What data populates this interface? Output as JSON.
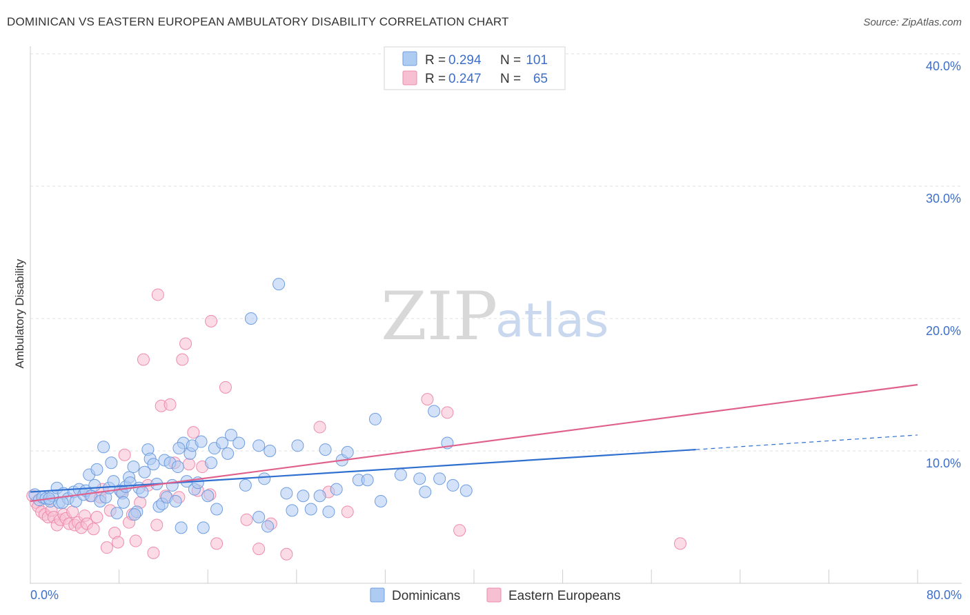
{
  "header": {
    "title": "DOMINICAN VS EASTERN EUROPEAN AMBULATORY DISABILITY CORRELATION CHART",
    "source": "Source: ZipAtlas.com"
  },
  "watermark": {
    "zip": "ZIP",
    "atlas": "atlas"
  },
  "legend": {
    "rows": [
      {
        "r_label": "R =",
        "r_value": "0.294",
        "n_label": "N =",
        "n_value": "101"
      },
      {
        "r_label": "R =",
        "r_value": "0.247",
        "n_label": "N =",
        "n_value": "65"
      }
    ]
  },
  "bottom_legend": {
    "items": [
      "Dominicans",
      "Eastern Europeans"
    ]
  },
  "colors": {
    "blue_fill": "#aecbf2",
    "blue_stroke": "#6e9de0",
    "blue_line": "#2e6fd0",
    "pink_fill": "#f7bfd2",
    "pink_stroke": "#ee8bac",
    "pink_line": "#e0608c",
    "tick_text": "#3d6ec9",
    "grid": "#e0e0e0"
  },
  "chart_data": {
    "type": "scatter",
    "title": "DOMINICAN VS EASTERN EUROPEAN AMBULATORY DISABILITY CORRELATION CHART",
    "xlabel": "",
    "ylabel": "Ambulatory Disability",
    "xlim": [
      0,
      80
    ],
    "ylim": [
      0,
      42
    ],
    "x_tick_labels": [
      "0.0%",
      "80.0%"
    ],
    "y_ticks": [
      10,
      20,
      30,
      40
    ],
    "y_tick_labels": [
      "10.0%",
      "20.0%",
      "30.0%",
      "40.0%"
    ],
    "grid": true,
    "legend_position": "top-center",
    "series": [
      {
        "name": "Dominicans",
        "r": 0.294,
        "n": 101,
        "trend": {
          "x": [
            0,
            60
          ],
          "y": [
            6.9,
            10.1
          ],
          "dashed_to": [
            80,
            11.2
          ]
        },
        "points": [
          [
            0.4,
            6.7
          ],
          [
            0.8,
            6.3
          ],
          [
            1.1,
            6.5
          ],
          [
            1.4,
            6.4
          ],
          [
            1.8,
            6.2
          ],
          [
            2.0,
            6.6
          ],
          [
            2.4,
            7.2
          ],
          [
            2.6,
            6.1
          ],
          [
            3.0,
            6.8
          ],
          [
            3.4,
            6.4
          ],
          [
            3.9,
            6.9
          ],
          [
            4.1,
            6.2
          ],
          [
            4.4,
            7.1
          ],
          [
            4.8,
            6.7
          ],
          [
            5.0,
            7.0
          ],
          [
            5.3,
            8.2
          ],
          [
            5.5,
            6.6
          ],
          [
            5.8,
            7.4
          ],
          [
            6.0,
            8.6
          ],
          [
            6.3,
            6.2
          ],
          [
            6.6,
            10.3
          ],
          [
            6.8,
            6.5
          ],
          [
            7.1,
            7.2
          ],
          [
            7.3,
            9.1
          ],
          [
            7.5,
            7.7
          ],
          [
            7.8,
            5.3
          ],
          [
            8.1,
            7.0
          ],
          [
            8.3,
            6.8
          ],
          [
            8.6,
            7.3
          ],
          [
            8.9,
            8.0
          ],
          [
            9.0,
            7.6
          ],
          [
            9.3,
            8.8
          ],
          [
            9.6,
            5.4
          ],
          [
            9.8,
            7.2
          ],
          [
            10.1,
            6.9
          ],
          [
            10.3,
            8.4
          ],
          [
            10.6,
            10.1
          ],
          [
            10.8,
            9.4
          ],
          [
            11.1,
            9.0
          ],
          [
            11.4,
            7.5
          ],
          [
            11.6,
            5.8
          ],
          [
            11.9,
            6.0
          ],
          [
            12.1,
            9.3
          ],
          [
            12.3,
            6.5
          ],
          [
            12.6,
            9.1
          ],
          [
            12.8,
            7.4
          ],
          [
            13.1,
            6.2
          ],
          [
            13.3,
            8.8
          ],
          [
            13.6,
            4.2
          ],
          [
            13.8,
            10.6
          ],
          [
            14.1,
            7.7
          ],
          [
            14.4,
            9.8
          ],
          [
            14.6,
            10.4
          ],
          [
            14.8,
            7.1
          ],
          [
            15.1,
            7.6
          ],
          [
            15.4,
            10.7
          ],
          [
            15.6,
            4.2
          ],
          [
            16.0,
            6.6
          ],
          [
            16.3,
            9.1
          ],
          [
            16.6,
            10.2
          ],
          [
            17.3,
            10.6
          ],
          [
            17.8,
            9.8
          ],
          [
            18.1,
            11.2
          ],
          [
            18.8,
            10.6
          ],
          [
            19.4,
            7.4
          ],
          [
            19.9,
            20.0
          ],
          [
            20.6,
            10.4
          ],
          [
            21.1,
            7.9
          ],
          [
            21.6,
            10.0
          ],
          [
            22.4,
            22.6
          ],
          [
            23.1,
            6.8
          ],
          [
            23.6,
            5.5
          ],
          [
            24.1,
            10.4
          ],
          [
            24.6,
            6.6
          ],
          [
            25.3,
            5.6
          ],
          [
            26.1,
            6.6
          ],
          [
            26.6,
            10.1
          ],
          [
            26.9,
            5.4
          ],
          [
            27.6,
            7.1
          ],
          [
            28.1,
            9.3
          ],
          [
            28.6,
            9.9
          ],
          [
            29.6,
            7.8
          ],
          [
            30.4,
            7.8
          ],
          [
            31.1,
            12.4
          ],
          [
            31.6,
            6.2
          ],
          [
            33.4,
            8.2
          ],
          [
            35.1,
            7.9
          ],
          [
            35.6,
            6.9
          ],
          [
            36.4,
            13.0
          ],
          [
            36.9,
            7.9
          ],
          [
            37.6,
            10.6
          ],
          [
            38.1,
            7.4
          ],
          [
            39.3,
            7.0
          ],
          [
            20.6,
            5.0
          ],
          [
            21.4,
            4.3
          ],
          [
            16.8,
            5.6
          ],
          [
            13.4,
            10.2
          ],
          [
            9.4,
            5.2
          ],
          [
            8.4,
            6.1
          ],
          [
            2.9,
            6.1
          ],
          [
            1.7,
            6.4
          ]
        ]
      },
      {
        "name": "Eastern Europeans",
        "r": 0.247,
        "n": 65,
        "trend": {
          "x": [
            0,
            80
          ],
          "y": [
            6.2,
            15.0
          ]
        },
        "points": [
          [
            0.2,
            6.6
          ],
          [
            0.5,
            6.1
          ],
          [
            0.7,
            5.8
          ],
          [
            1.0,
            5.4
          ],
          [
            1.3,
            5.2
          ],
          [
            1.6,
            5.0
          ],
          [
            1.9,
            5.5
          ],
          [
            2.1,
            5.0
          ],
          [
            2.4,
            4.4
          ],
          [
            2.7,
            4.8
          ],
          [
            3.0,
            5.2
          ],
          [
            3.2,
            4.9
          ],
          [
            3.5,
            4.5
          ],
          [
            3.8,
            5.4
          ],
          [
            4.0,
            4.4
          ],
          [
            4.3,
            4.6
          ],
          [
            4.6,
            4.2
          ],
          [
            4.9,
            5.1
          ],
          [
            5.1,
            4.5
          ],
          [
            5.4,
            6.6
          ],
          [
            5.7,
            4.1
          ],
          [
            6.0,
            5.0
          ],
          [
            6.3,
            6.5
          ],
          [
            6.5,
            7.1
          ],
          [
            6.9,
            2.7
          ],
          [
            7.2,
            5.5
          ],
          [
            7.6,
            3.8
          ],
          [
            7.9,
            3.1
          ],
          [
            8.2,
            6.9
          ],
          [
            8.5,
            9.7
          ],
          [
            8.9,
            4.6
          ],
          [
            9.2,
            5.2
          ],
          [
            9.5,
            3.2
          ],
          [
            9.9,
            6.1
          ],
          [
            10.2,
            16.9
          ],
          [
            10.6,
            7.4
          ],
          [
            11.1,
            2.3
          ],
          [
            11.4,
            4.4
          ],
          [
            11.8,
            13.4
          ],
          [
            12.2,
            6.6
          ],
          [
            12.6,
            13.5
          ],
          [
            13.0,
            9.1
          ],
          [
            13.4,
            6.5
          ],
          [
            13.7,
            16.9
          ],
          [
            14.0,
            18.1
          ],
          [
            14.3,
            9.0
          ],
          [
            14.7,
            11.4
          ],
          [
            15.1,
            7.0
          ],
          [
            15.5,
            8.8
          ],
          [
            16.2,
            6.7
          ],
          [
            16.8,
            3.0
          ],
          [
            17.6,
            14.8
          ],
          [
            19.5,
            4.8
          ],
          [
            20.6,
            2.6
          ],
          [
            21.7,
            4.5
          ],
          [
            23.1,
            2.2
          ],
          [
            26.1,
            11.8
          ],
          [
            26.9,
            6.9
          ],
          [
            28.6,
            5.4
          ],
          [
            35.8,
            13.9
          ],
          [
            37.6,
            12.9
          ],
          [
            38.7,
            4.0
          ],
          [
            58.6,
            3.0
          ],
          [
            11.5,
            21.8
          ],
          [
            16.3,
            19.8
          ]
        ]
      }
    ]
  }
}
